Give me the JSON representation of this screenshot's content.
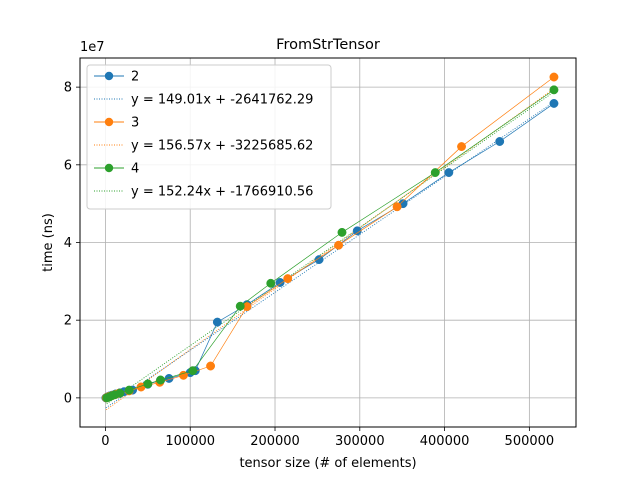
{
  "chart_data": {
    "type": "scatter",
    "title": "FromStrTensor",
    "xlabel": "tensor size (# of elements)",
    "ylabel": "time (ns)",
    "y_offset_label": "1e7",
    "xlim": [
      -30000,
      555000
    ],
    "ylim": [
      -7500000,
      87500000
    ],
    "x_ticks": [
      0,
      100000,
      200000,
      300000,
      400000,
      500000
    ],
    "x_tick_labels": [
      "0",
      "100000",
      "200000",
      "300000",
      "400000",
      "500000"
    ],
    "y_ticks": [
      0,
      20000000,
      40000000,
      60000000,
      80000000
    ],
    "y_tick_labels": [
      "0",
      "2",
      "4",
      "6",
      "8"
    ],
    "grid": true,
    "legend_position": "upper-left",
    "series": [
      {
        "name": "2",
        "color": "#1f77b4",
        "fit_label": "y = 149.01x + -2641762.29",
        "fit": {
          "slope": 149.01,
          "intercept": -2641762.29
        },
        "x": [
          500,
          1500,
          3000,
          5000,
          8000,
          12000,
          17000,
          22000,
          32000,
          50000,
          65000,
          75000,
          100000,
          106000,
          132000,
          167000,
          206000,
          252000,
          297000,
          351000,
          405000,
          465000,
          529000
        ],
        "y": [
          0,
          100000,
          300000,
          500000,
          700000,
          1000000,
          1300000,
          1600000,
          2000000,
          3500000,
          4500000,
          5000000,
          6500000,
          7000000,
          19500000,
          24000000,
          29700000,
          35600000,
          43000000,
          50000000,
          58000000,
          66000000,
          75800000
        ]
      },
      {
        "name": "3",
        "color": "#ff7f0e",
        "fit_label": "y = 156.57x + -3225685.62",
        "fit": {
          "slope": 156.57,
          "intercept": -3225685.62
        },
        "x": [
          1000,
          2500,
          5000,
          8000,
          12000,
          16000,
          28000,
          42000,
          64000,
          92000,
          124000,
          167000,
          215000,
          275000,
          344000,
          420000,
          529000
        ],
        "y": [
          0,
          200000,
          400000,
          600000,
          900000,
          1200000,
          1800000,
          2800000,
          4000000,
          5800000,
          8200000,
          23500000,
          30700000,
          39300000,
          49200000,
          64700000,
          82600000
        ]
      },
      {
        "name": "4",
        "color": "#2ca02c",
        "fit_label": "y = 152.24x + -1766910.56",
        "fit": {
          "slope": 152.24,
          "intercept": -1766910.56
        },
        "x": [
          1500,
          4000,
          7000,
          11000,
          17000,
          28000,
          50000,
          65000,
          103000,
          159000,
          195000,
          279000,
          389000,
          529000
        ],
        "y": [
          0,
          200000,
          500000,
          800000,
          1200000,
          2000000,
          3600000,
          4600000,
          7000000,
          23600000,
          29500000,
          42600000,
          58000000,
          79300000
        ]
      }
    ]
  }
}
